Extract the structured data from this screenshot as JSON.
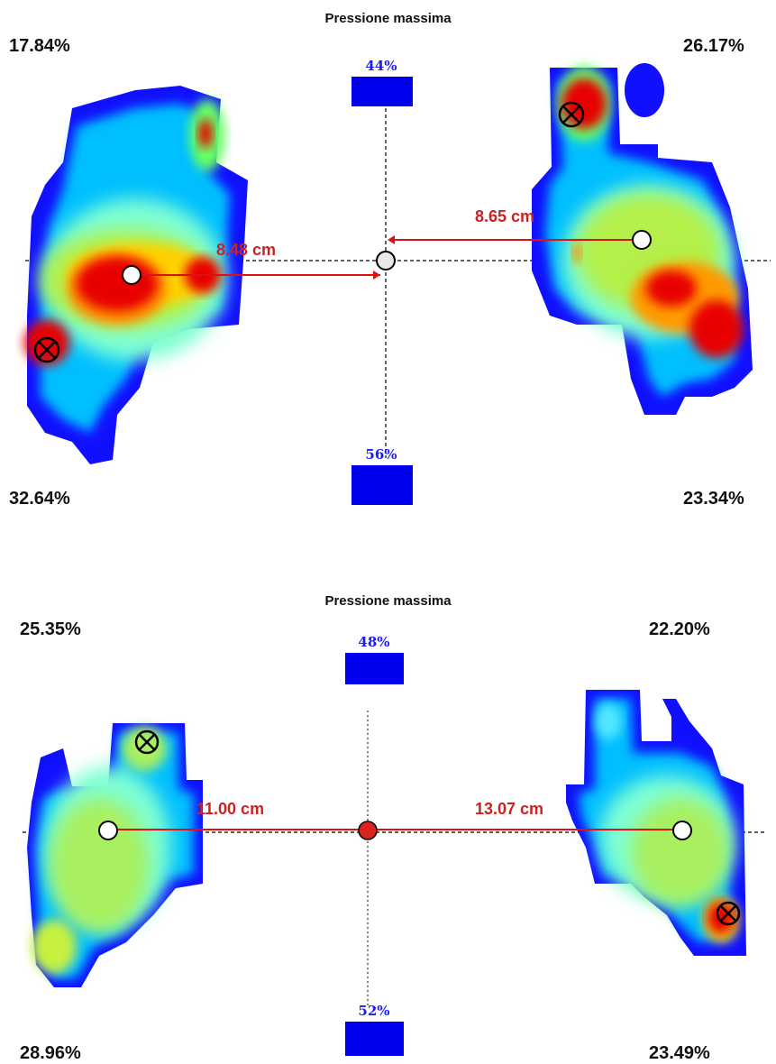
{
  "panels": [
    {
      "title": "Pressione massima",
      "quadrants": {
        "top_left": "17.84%",
        "top_right": "26.17%",
        "bottom_left": "32.64%",
        "bottom_right": "23.34%"
      },
      "forefoot_load": "44%",
      "rearfoot_load": "56%",
      "left_distance": "8.48 cm",
      "right_distance": "8.65 cm"
    },
    {
      "title": "Pressione massima",
      "quadrants": {
        "top_left": "25.35%",
        "top_right": "22.20%",
        "bottom_left": "28.96%",
        "bottom_right": "23.49%"
      },
      "forefoot_load": "48%",
      "rearfoot_load": "52%",
      "left_distance": "11.00 cm",
      "right_distance": "13.07 cm"
    }
  ],
  "colors": {
    "load_bar": "#0000ee",
    "distance_line": "#dd1111",
    "heat_low": "#0000ff",
    "heat_high": "#ee0000"
  }
}
